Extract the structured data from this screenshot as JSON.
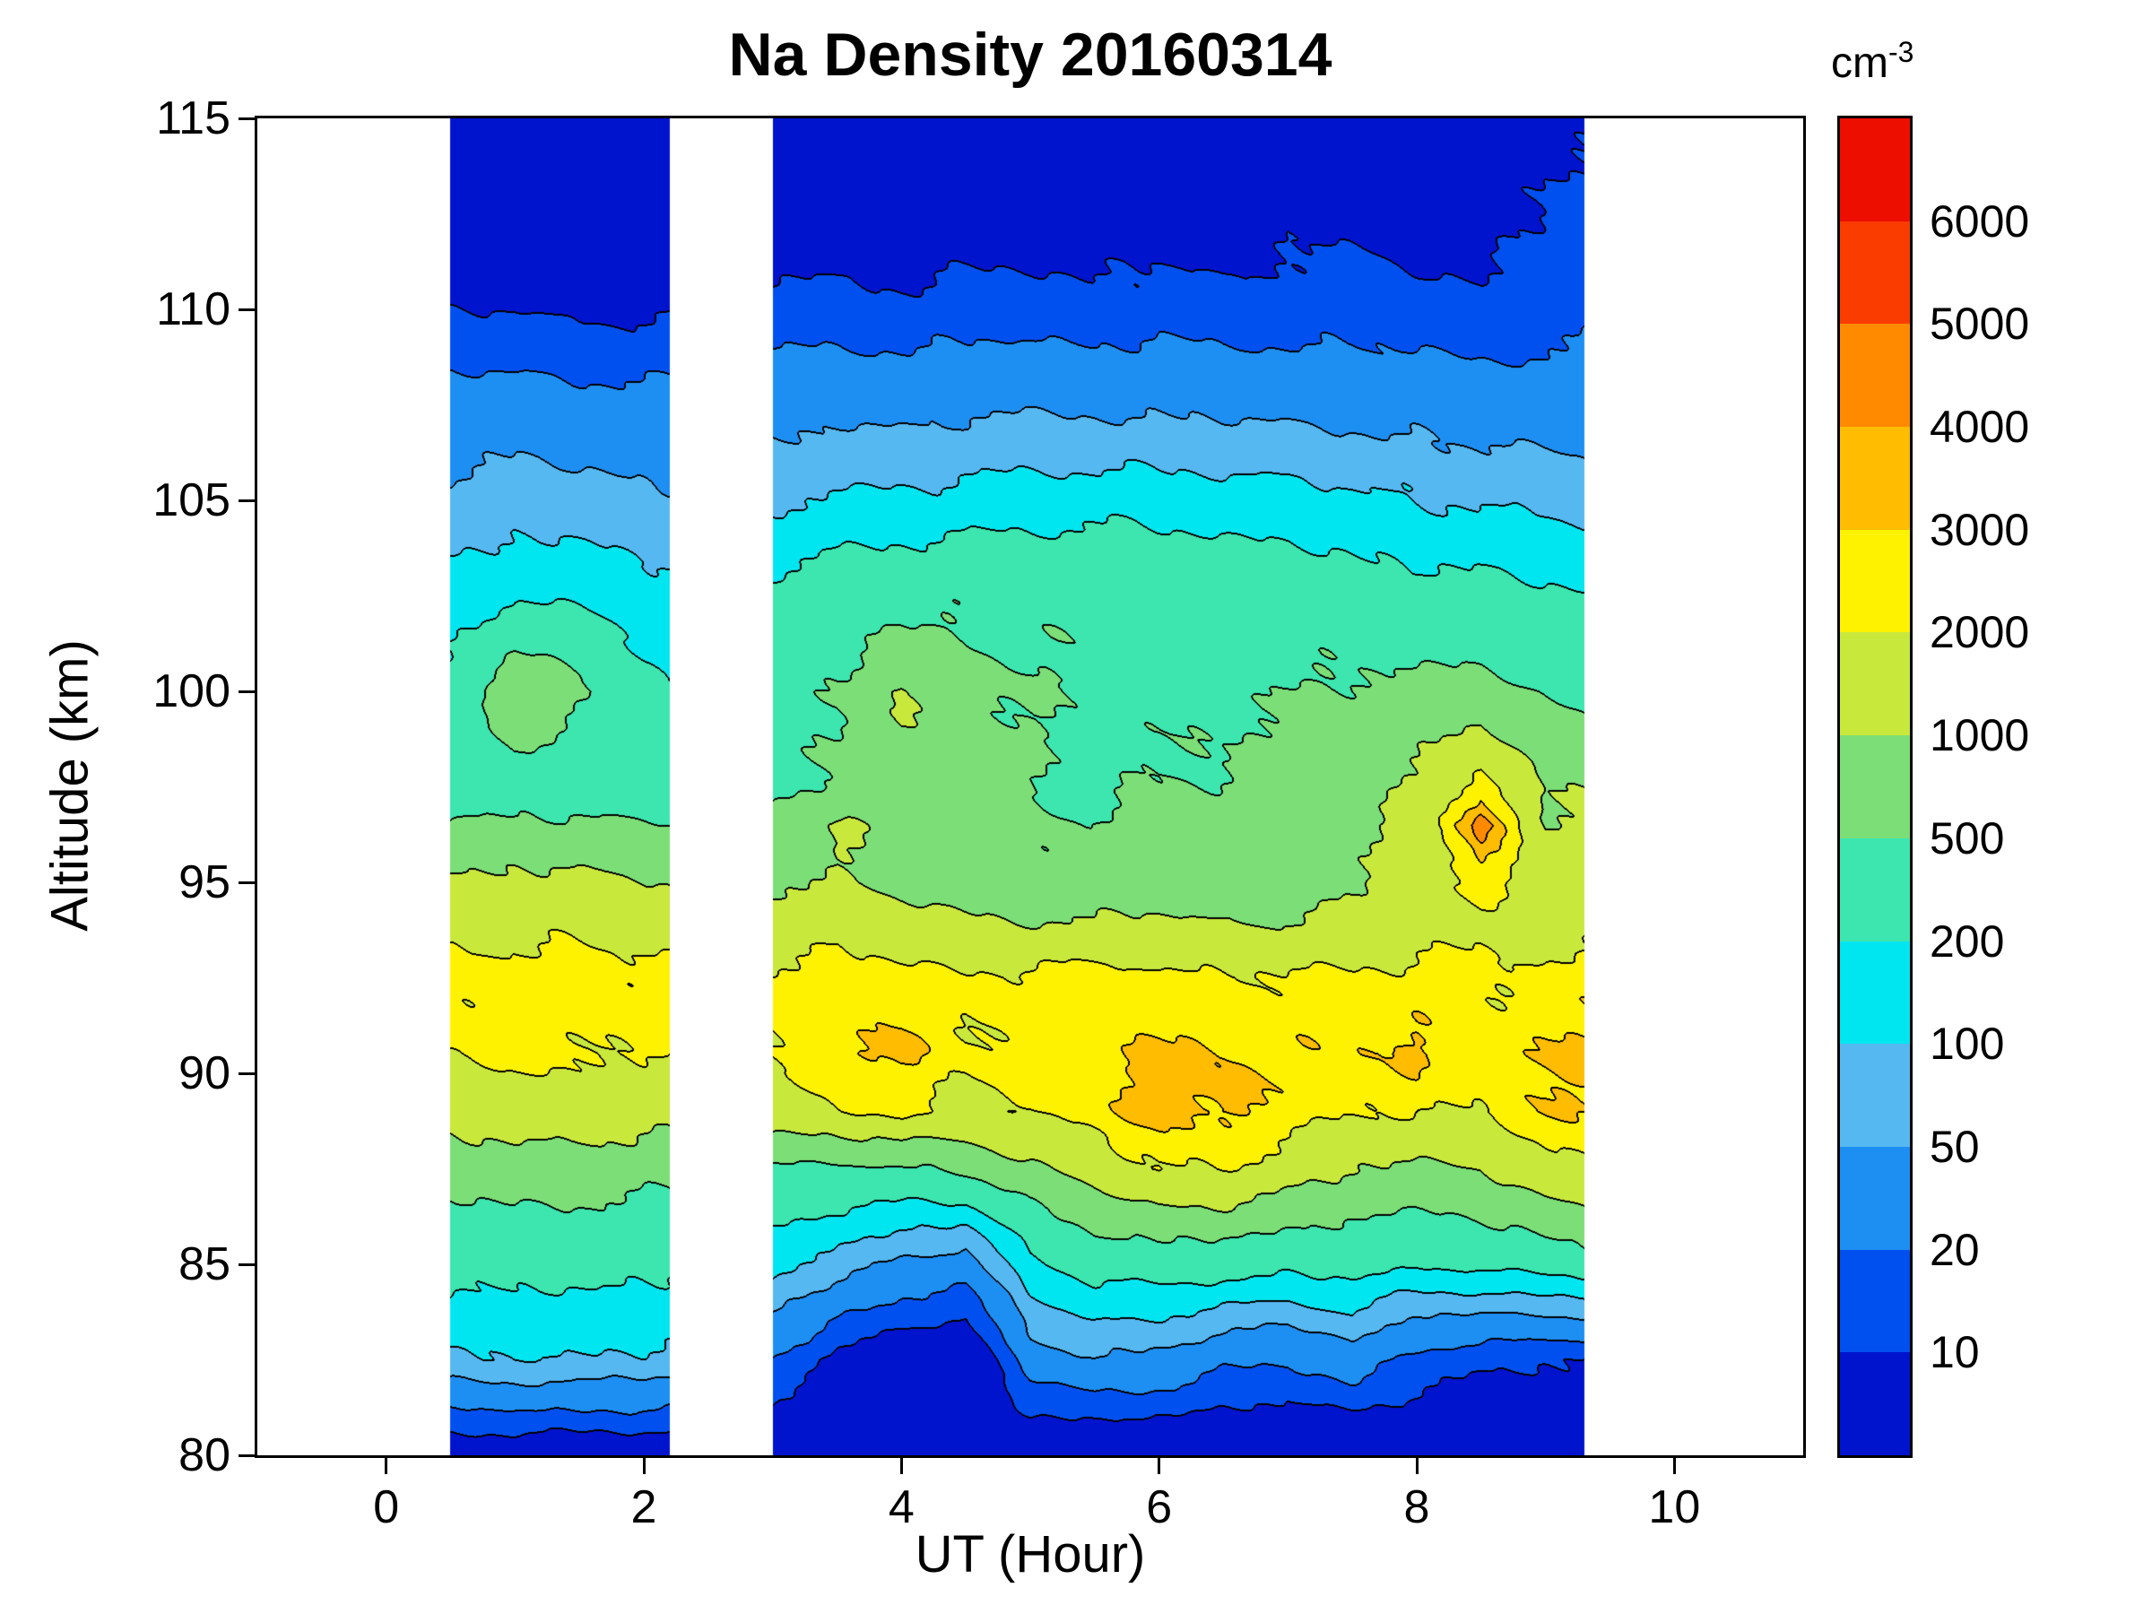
{
  "title": "Na Density 20160314",
  "axes": {
    "xlabel": "UT (Hour)",
    "ylabel": "Altitude (km)",
    "x_ticks": [
      0,
      2,
      4,
      6,
      8,
      10
    ],
    "y_ticks": [
      80,
      85,
      90,
      95,
      100,
      105,
      110,
      115
    ],
    "xlim": [
      -1,
      11
    ],
    "ylim": [
      80,
      115
    ]
  },
  "colorbar": {
    "unit_base": "cm",
    "unit_exp": "-3"
  },
  "chart_data": {
    "type": "heatmap",
    "title": "Na Density 20160314",
    "xlabel": "UT (Hour)",
    "ylabel": "Altitude (km)",
    "units": "cm^-3",
    "xlim": [
      -1,
      11
    ],
    "ylim": [
      80,
      115
    ],
    "grid": false,
    "legend_position": "right-colorbar",
    "levels": [
      10,
      20,
      50,
      100,
      200,
      500,
      1000,
      2000,
      3000,
      4000,
      5000,
      6000
    ],
    "colors": [
      "#0013CD",
      "#0050F0",
      "#1E8FF2",
      "#56B8F0",
      "#00E6F0",
      "#3CE6AE",
      "#7CDE76",
      "#C9E83C",
      "#FFF200",
      "#FFBC00",
      "#FF8A00",
      "#FB3C00",
      "#ED0E00"
    ],
    "contour_line_color": "#000000",
    "segments": [
      [
        0.5,
        2.2
      ],
      [
        3.0,
        9.3
      ]
    ],
    "hours": [
      0.5,
      1.0,
      1.5,
      2.2,
      3.0,
      3.5,
      4.0,
      4.5,
      5.0,
      5.5,
      6.0,
      6.5,
      7.0,
      7.5,
      8.0,
      8.5,
      9.0,
      9.3
    ],
    "altitudes": [
      80,
      82.5,
      85,
      87.5,
      89,
      90.5,
      92.5,
      94,
      95,
      96.5,
      97.5,
      100,
      102.5,
      105,
      107.5,
      110,
      112.5,
      115
    ],
    "density": [
      [
        5,
        5,
        5,
        5,
        4,
        4,
        4,
        4,
        4,
        4,
        4,
        4,
        4,
        4,
        4,
        4,
        4,
        4
      ],
      [
        90,
        100,
        100,
        80,
        20,
        8,
        5,
        4,
        30,
        50,
        40,
        25,
        20,
        35,
        15,
        12,
        10,
        10
      ],
      [
        260,
        280,
        260,
        230,
        130,
        70,
        45,
        30,
        180,
        280,
        330,
        300,
        260,
        290,
        210,
        240,
        300,
        340
      ],
      [
        700,
        750,
        700,
        650,
        500,
        420,
        450,
        600,
        900,
        1400,
        2100,
        2100,
        1500,
        1000,
        900,
        1000,
        1700,
        2000
      ],
      [
        1400,
        1500,
        1400,
        1300,
        1300,
        2100,
        2200,
        1800,
        2000,
        2700,
        3300,
        3400,
        2500,
        2000,
        2100,
        2000,
        3000,
        3200
      ],
      [
        2100,
        2300,
        2200,
        2000,
        1900,
        3100,
        3200,
        2100,
        2300,
        2800,
        3200,
        3200,
        2700,
        2900,
        3100,
        2400,
        2900,
        3200
      ],
      [
        2400,
        2500,
        2400,
        2300,
        2100,
        2500,
        2400,
        2200,
        2300,
        2400,
        2300,
        2200,
        2100,
        2200,
        2400,
        2100,
        2300,
        2400
      ],
      [
        1600,
        1700,
        1600,
        1500,
        1400,
        1500,
        1300,
        1100,
        1000,
        1000,
        1100,
        1000,
        1000,
        1200,
        1500,
        1700,
        1400,
        1600
      ],
      [
        1100,
        1200,
        1100,
        1000,
        900,
        1000,
        800,
        700,
        650,
        600,
        700,
        650,
        700,
        900,
        1300,
        2400,
        1500,
        1700
      ],
      [
        550,
        600,
        550,
        500,
        600,
        1050,
        750,
        650,
        550,
        500,
        600,
        580,
        650,
        800,
        1300,
        4900,
        1000,
        1200
      ],
      [
        300,
        350,
        300,
        250,
        400,
        600,
        800,
        600,
        500,
        450,
        500,
        550,
        600,
        700,
        1100,
        2600,
        900,
        1000
      ],
      [
        250,
        1050,
        600,
        200,
        350,
        500,
        1100,
        600,
        500,
        450,
        400,
        450,
        500,
        550,
        600,
        700,
        500,
        400
      ],
      [
        130,
        180,
        160,
        120,
        250,
        350,
        400,
        420,
        450,
        430,
        400,
        380,
        350,
        300,
        280,
        250,
        220,
        200
      ],
      [
        60,
        70,
        65,
        55,
        90,
        110,
        120,
        130,
        140,
        155,
        140,
        130,
        150,
        120,
        100,
        90,
        80,
        75
      ],
      [
        28,
        30,
        28,
        25,
        35,
        38,
        40,
        42,
        45,
        45,
        42,
        40,
        40,
        38,
        35,
        32,
        30,
        30
      ],
      [
        9,
        10,
        9,
        9,
        12,
        13,
        12,
        13,
        14,
        13,
        14,
        12,
        13,
        14,
        12,
        11,
        14,
        16
      ],
      [
        5,
        5,
        5,
        5,
        6,
        6,
        6,
        6,
        7,
        6,
        7,
        6,
        9,
        8,
        7,
        7,
        11,
        13
      ],
      [
        3,
        3,
        3,
        3,
        4,
        4,
        4,
        4,
        4,
        4,
        4,
        4,
        5,
        5,
        5,
        5,
        8,
        9
      ]
    ]
  }
}
